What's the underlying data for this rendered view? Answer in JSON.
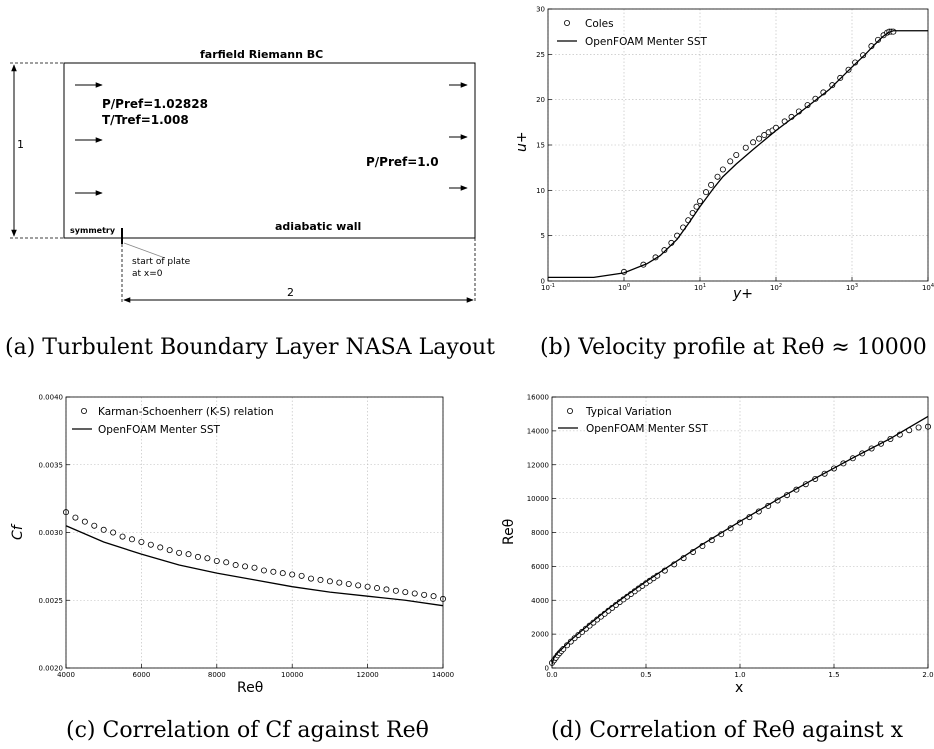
{
  "layout_panel": {
    "top_label": "farfield Riemann BC",
    "inlet_pressure": "P/Pref=1.02828",
    "inlet_temp": "T/Tref=1.008",
    "outlet_pressure": "P/Pref=1.0",
    "height_label": "1",
    "length_label": "2",
    "symmetry_label": "symmetry",
    "wall_label": "adiabatic wall",
    "plate_start_line1": "start of plate",
    "plate_start_line2": "at x=0",
    "caption": "(a)  Turbulent Boundary Layer NASA Layout"
  },
  "chart_data": [
    {
      "id": "b",
      "type": "line",
      "xscale": "log",
      "xlim": [
        0.1,
        10000
      ],
      "ylim": [
        0,
        30
      ],
      "xlabel": "y+",
      "ylabel": "u+",
      "xticks": [
        "10-1",
        "100",
        "101",
        "102",
        "103",
        "104"
      ],
      "yticks": [
        "0",
        "5",
        "10",
        "15",
        "20",
        "25",
        "30"
      ],
      "grid": true,
      "legend_position": "top-left",
      "caption": "(b)  Velocity profile at Reθ ≈ 10000",
      "series": [
        {
          "name": "Coles",
          "kind": "markers",
          "x": [
            1,
            1.8,
            2.6,
            3.4,
            4.2,
            5,
            6,
            7,
            8,
            9,
            10,
            12,
            14,
            17,
            20,
            25,
            30,
            40,
            50,
            60,
            70,
            80,
            90,
            100,
            130,
            160,
            200,
            260,
            330,
            420,
            550,
            700,
            900,
            1100,
            1400,
            1800,
            2200,
            2600,
            2900,
            3100,
            3300,
            3500
          ],
          "y": [
            1.0,
            1.8,
            2.6,
            3.4,
            4.2,
            5.0,
            5.9,
            6.7,
            7.5,
            8.2,
            8.8,
            9.8,
            10.6,
            11.5,
            12.3,
            13.2,
            13.9,
            14.7,
            15.3,
            15.7,
            16.1,
            16.4,
            16.6,
            16.9,
            17.6,
            18.1,
            18.7,
            19.4,
            20.1,
            20.8,
            21.6,
            22.4,
            23.3,
            24.1,
            24.9,
            25.9,
            26.6,
            27.1,
            27.4,
            27.5,
            27.5,
            27.5
          ]
        },
        {
          "name": "OpenFOAM Menter SST",
          "kind": "line",
          "x": [
            0.1,
            0.4,
            1,
            2,
            3,
            5,
            7,
            10,
            15,
            20,
            30,
            50,
            100,
            200,
            500,
            1000,
            1500,
            2000,
            2500,
            3000,
            3500,
            4000,
            10000
          ],
          "y": [
            0.4,
            0.4,
            0.9,
            1.9,
            2.8,
            4.6,
            6.3,
            8.2,
            10.2,
            11.5,
            12.9,
            14.5,
            16.6,
            18.5,
            21.1,
            23.6,
            25.0,
            26.1,
            26.9,
            27.4,
            27.6,
            27.6,
            27.6
          ]
        }
      ]
    },
    {
      "id": "c",
      "type": "line",
      "xlim": [
        4000,
        14000
      ],
      "ylim": [
        0.002,
        0.004
      ],
      "xlabel": "Reθ",
      "ylabel": "Cf",
      "xticks": [
        "4000",
        "6000",
        "8000",
        "10000",
        "12000",
        "14000"
      ],
      "yticks": [
        "0.0020",
        "0.0025",
        "0.0030",
        "0.0035",
        "0.0040"
      ],
      "grid": true,
      "legend_position": "top-left",
      "caption": "(c)  Correlation of Cf against Reθ",
      "series": [
        {
          "name": "Karman-Schoenherr (K-S) relation",
          "kind": "markers",
          "x": [
            4000,
            4250,
            4500,
            4750,
            5000,
            5250,
            5500,
            5750,
            6000,
            6250,
            6500,
            6750,
            7000,
            7250,
            7500,
            7750,
            8000,
            8250,
            8500,
            8750,
            9000,
            9250,
            9500,
            9750,
            10000,
            10250,
            10500,
            10750,
            11000,
            11250,
            11500,
            11750,
            12000,
            12250,
            12500,
            12750,
            13000,
            13250,
            13500,
            13750,
            14000
          ],
          "y": [
            0.00315,
            0.00311,
            0.00308,
            0.00305,
            0.00302,
            0.003,
            0.00297,
            0.00295,
            0.00293,
            0.00291,
            0.00289,
            0.00287,
            0.00285,
            0.00284,
            0.00282,
            0.00281,
            0.00279,
            0.00278,
            0.00276,
            0.00275,
            0.00274,
            0.00272,
            0.00271,
            0.0027,
            0.00269,
            0.00268,
            0.00266,
            0.00265,
            0.00264,
            0.00263,
            0.00262,
            0.00261,
            0.0026,
            0.00259,
            0.00258,
            0.00257,
            0.00256,
            0.00255,
            0.00254,
            0.00253,
            0.00251
          ]
        },
        {
          "name": "OpenFOAM Menter SST",
          "kind": "line",
          "x": [
            4000,
            5000,
            6000,
            7000,
            8000,
            9000,
            10000,
            11000,
            12000,
            13000,
            14000
          ],
          "y": [
            0.00305,
            0.00293,
            0.00284,
            0.00276,
            0.0027,
            0.00265,
            0.0026,
            0.00256,
            0.00253,
            0.0025,
            0.00246
          ]
        }
      ]
    },
    {
      "id": "d",
      "type": "line",
      "xlim": [
        0,
        2
      ],
      "ylim": [
        0,
        16000
      ],
      "xlabel": "x",
      "ylabel": "Reθ",
      "xticks": [
        "0.0",
        "0.5",
        "1.0",
        "1.5",
        "2.0"
      ],
      "yticks": [
        "0",
        "2000",
        "4000",
        "6000",
        "8000",
        "10000",
        "12000",
        "14000",
        "16000"
      ],
      "grid": true,
      "legend_position": "top-left",
      "caption": "(d)  Correlation of Reθ against x",
      "series": [
        {
          "name": "Typical Variation",
          "kind": "markers",
          "x": [
            0.0,
            0.01,
            0.02,
            0.03,
            0.04,
            0.05,
            0.06,
            0.08,
            0.1,
            0.12,
            0.14,
            0.16,
            0.18,
            0.2,
            0.22,
            0.24,
            0.26,
            0.28,
            0.3,
            0.32,
            0.34,
            0.36,
            0.38,
            0.4,
            0.42,
            0.44,
            0.46,
            0.48,
            0.5,
            0.52,
            0.54,
            0.56,
            0.6,
            0.65,
            0.7,
            0.75,
            0.8,
            0.85,
            0.9,
            0.95,
            1.0,
            1.05,
            1.1,
            1.15,
            1.2,
            1.25,
            1.3,
            1.35,
            1.4,
            1.45,
            1.5,
            1.55,
            1.6,
            1.65,
            1.7,
            1.75,
            1.8,
            1.85,
            1.9,
            1.95,
            2.0
          ],
          "y": [
            300,
            450,
            600,
            750,
            880,
            1000,
            1120,
            1340,
            1560,
            1760,
            1950,
            2130,
            2320,
            2500,
            2680,
            2860,
            3030,
            3200,
            3380,
            3550,
            3720,
            3890,
            4050,
            4210,
            4370,
            4530,
            4690,
            4850,
            5000,
            5150,
            5300,
            5450,
            5750,
            6120,
            6490,
            6850,
            7200,
            7550,
            7900,
            8250,
            8580,
            8910,
            9240,
            9570,
            9890,
            10210,
            10530,
            10850,
            11160,
            11470,
            11780,
            12080,
            12380,
            12670,
            12960,
            13240,
            13520,
            13780,
            14040,
            14200,
            14250
          ]
        },
        {
          "name": "OpenFOAM Menter SST",
          "kind": "line",
          "x": [
            0.0,
            0.01,
            0.03,
            0.05,
            0.1,
            0.2,
            0.3,
            0.4,
            0.5,
            0.6,
            0.8,
            1.0,
            1.2,
            1.4,
            1.6,
            1.8,
            1.9,
            2.0
          ],
          "y": [
            200,
            600,
            900,
            1100,
            1650,
            2600,
            3500,
            4320,
            5100,
            5850,
            7300,
            8650,
            9950,
            11200,
            12400,
            13550,
            14200,
            14850
          ]
        }
      ]
    }
  ]
}
